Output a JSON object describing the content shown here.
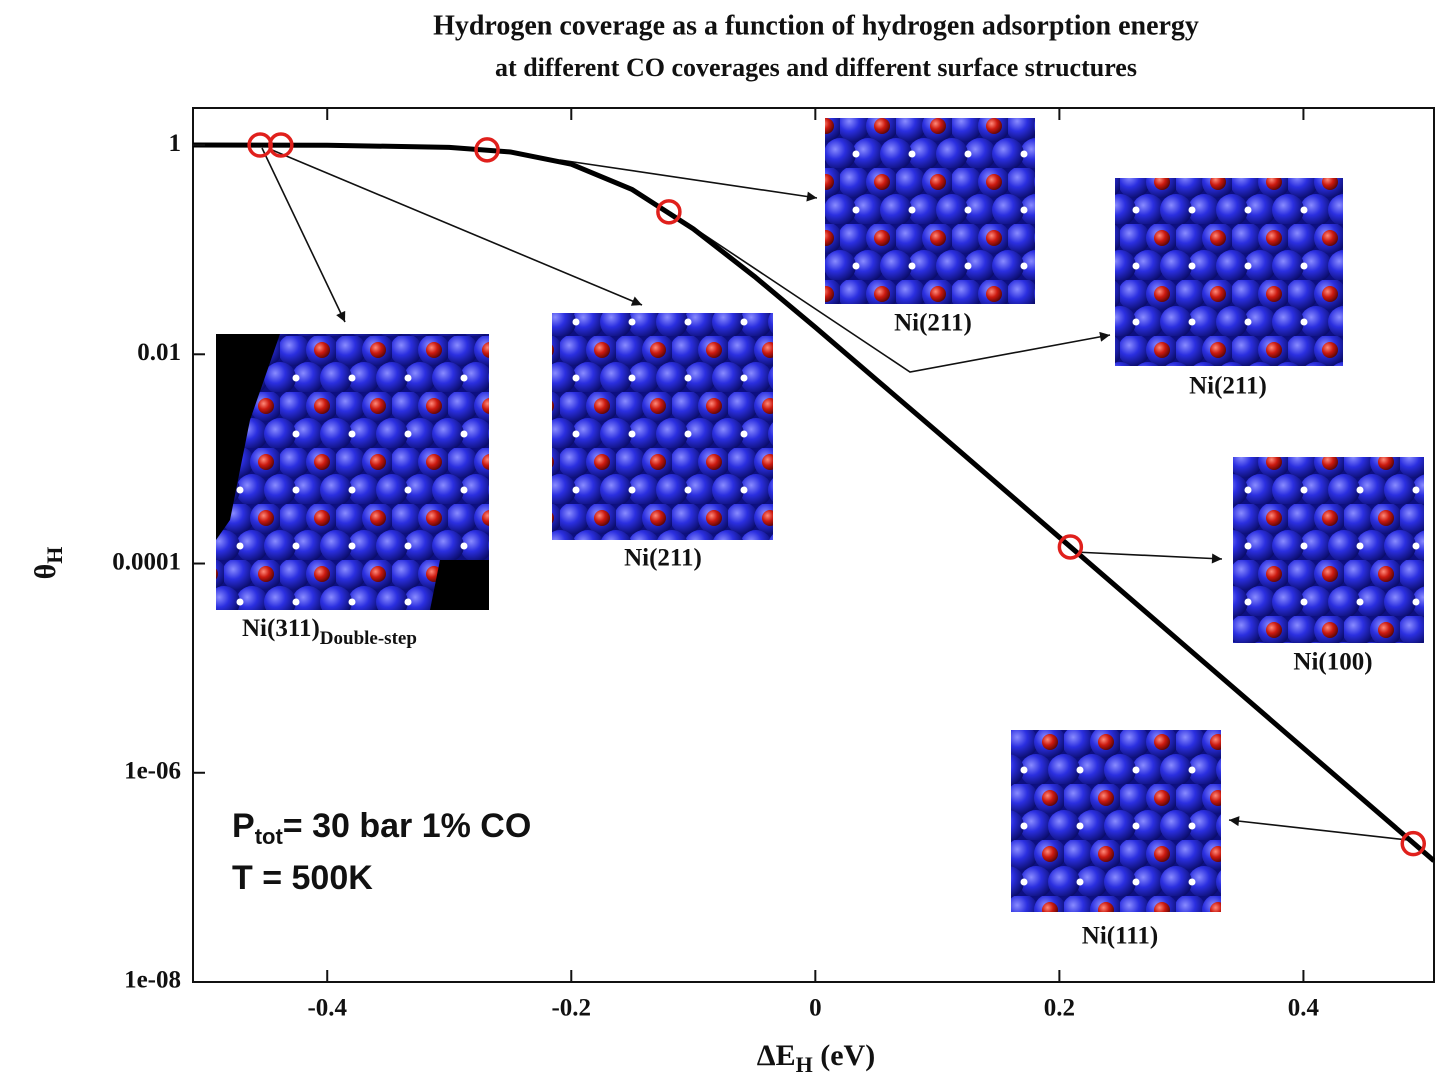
{
  "chart_data": {
    "type": "line",
    "title": "Hydrogen coverage as a function of hydrogen adsorption energy",
    "subtitle": "at different CO coverages and different surface structures",
    "x_label": {
      "text": "ΔE",
      "subscript": "H",
      "suffix": " (eV)"
    },
    "y_label": {
      "text": "θ",
      "subscript": "H"
    },
    "log_y": true,
    "xlim": [
      -0.51,
      0.507
    ],
    "ylim": [
      1e-08,
      2.26
    ],
    "xticks": [
      -0.4,
      -0.2,
      0,
      0.2,
      0.4
    ],
    "yticks": [
      {
        "value": 1e-08,
        "label": "1e-08"
      },
      {
        "value": 1e-06,
        "label": "1e-06"
      },
      0.0001,
      0.01,
      1
    ],
    "series": [
      {
        "color": "#000000",
        "marker": false,
        "x": [
          -0.51,
          -0.4,
          -0.3,
          -0.25,
          -0.2,
          -0.15,
          -0.1,
          -0.05,
          0,
          0.1,
          0.2,
          0.3,
          0.4,
          0.507
        ],
        "values": [
          1.0,
          0.995,
          0.951,
          0.859,
          0.656,
          0.375,
          0.158,
          0.0556,
          0.0181,
          0.00181,
          0.000178,
          1.75e-05,
          1.72e-06,
          1.44e-07
        ]
      },
      {
        "color": "#e0201c",
        "marker": true,
        "x": [
          -0.455,
          -0.438,
          -0.269,
          -0.12,
          0.209,
          0.49
        ],
        "values": [
          1,
          1,
          0.9,
          0.23,
          0.000144,
          2.1e-07
        ]
      }
    ],
    "annotations": {
      "ni311": "Ni(311)",
      "ni311_sub": "Double-step",
      "ni211_a": "Ni(211)",
      "ni211_b": "Ni(211)",
      "ni211_c": "Ni(211)",
      "ni100": "Ni(100)",
      "ni111": "Ni(111)",
      "pressure": "P",
      "pressure_sub": "tot",
      "pressure_rest": "= 30 bar   1% CO",
      "temperature": "T = 500K"
    }
  }
}
